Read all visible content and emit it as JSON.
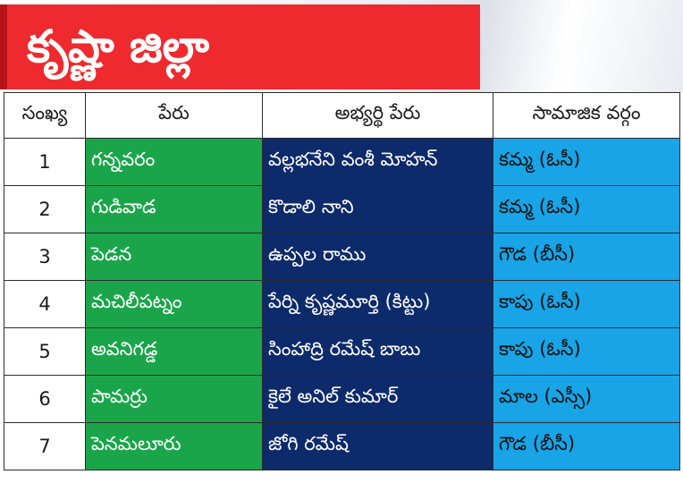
{
  "title": "కృష్ణా జిల్లా",
  "columns": [
    "సంఖ్య",
    "పేరు",
    "అభ్యర్థి పేరు",
    "సామాజిక వర్గం"
  ],
  "rows": [
    {
      "num": "1",
      "place": "గన్నవరం",
      "candidate": "వల్లభనేని వంశీ మోహన్",
      "caste": "కమ్మ (ఓసీ)"
    },
    {
      "num": "2",
      "place": "గుడివాడ",
      "candidate": "కొడాలి నాని",
      "caste": "కమ్మ (ఓసీ)"
    },
    {
      "num": "3",
      "place": "పెడన",
      "candidate": "ఉప్పల రాము",
      "caste": "గౌడ (బీసీ)"
    },
    {
      "num": "4",
      "place": "మచిలీపట్నం",
      "candidate": "పేర్ని కృష్ణమూర్తి (కిట్టు)",
      "caste": "కాపు (ఓసీ)"
    },
    {
      "num": "5",
      "place": "అవనిగడ్డ",
      "candidate": "సింహాద్రి రమేష్ బాబు",
      "caste": "కాపు (ఓసీ)"
    },
    {
      "num": "6",
      "place": "పామర్రు",
      "candidate": "కైలే అనిల్ కుమార్",
      "caste": "మాల (ఎస్సీ)"
    },
    {
      "num": "7",
      "place": "పెనమలూరు",
      "candidate": "జోగి రమేష్",
      "caste": "గౌడ (బీసీ)"
    }
  ],
  "colors": {
    "title_bg": "#ee2a2e",
    "place_bg": "#1ba54a",
    "candidate_bg": "#0d2a6b",
    "caste_bg": "#18a4e6"
  }
}
